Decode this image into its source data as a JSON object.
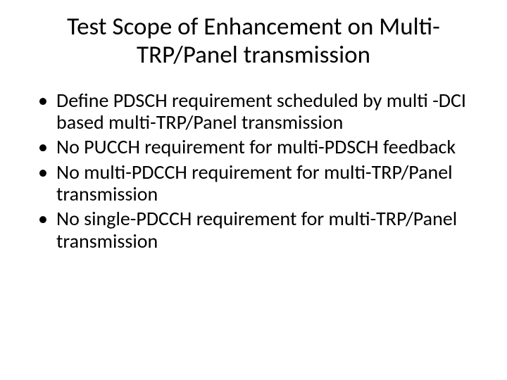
{
  "slide": {
    "background_color": "#ffffff",
    "text_color": "#000000",
    "title": {
      "text": "Test Scope of Enhancement on Multi-TRP/Panel transmission",
      "fontsize": 35,
      "align": "center",
      "font_weight": 400
    },
    "bullets": {
      "fontsize": 28,
      "marker": "•",
      "items": [
        "Define PDSCH requirement scheduled by multi -DCI based multi-TRP/Panel transmission",
        "No PUCCH requirement for multi-PDSCH feedback",
        "No multi-PDCCH requirement for multi-TRP/Panel transmission",
        "No single-PDCCH requirement for multi-TRP/Panel transmission"
      ]
    }
  }
}
